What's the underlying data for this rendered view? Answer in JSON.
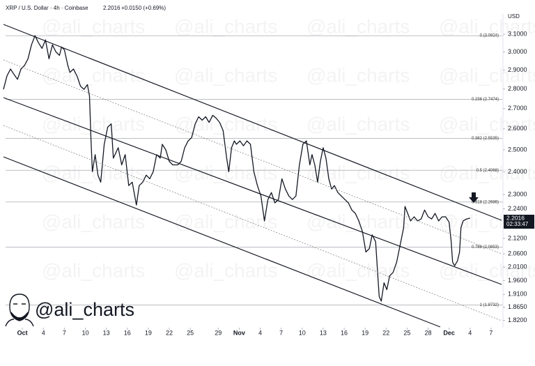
{
  "chart_data": {
    "type": "line",
    "header": {
      "symbol": "XRP / U.S. Dollar · 4h · Coinbase",
      "change": "+0.0150 (+0.69%)"
    },
    "currency": "USD",
    "last_price": 2.2016,
    "countdown": "02:33:47",
    "watermark": "@ali_charts",
    "color": "#131722",
    "y_scale": "log",
    "xlim": [
      -3.2,
      68.7
    ],
    "ylim": [
      1.8,
      3.22
    ],
    "xticks": [
      {
        "value": 0,
        "label": "Oct"
      },
      {
        "value": 3,
        "label": "4"
      },
      {
        "value": 6,
        "label": "7"
      },
      {
        "value": 9,
        "label": "10"
      },
      {
        "value": 12,
        "label": "13"
      },
      {
        "value": 15,
        "label": "16"
      },
      {
        "value": 18,
        "label": "19"
      },
      {
        "value": 21,
        "label": "22"
      },
      {
        "value": 24,
        "label": "25"
      },
      {
        "value": 28,
        "label": "29"
      },
      {
        "value": 31,
        "label": "Nov"
      },
      {
        "value": 34,
        "label": "4"
      },
      {
        "value": 37,
        "label": "7"
      },
      {
        "value": 40,
        "label": "10"
      },
      {
        "value": 43,
        "label": "13"
      },
      {
        "value": 46,
        "label": "16"
      },
      {
        "value": 49,
        "label": "19"
      },
      {
        "value": 52,
        "label": "22"
      },
      {
        "value": 55,
        "label": "25"
      },
      {
        "value": 58,
        "label": "28"
      },
      {
        "value": 61,
        "label": "Dec"
      },
      {
        "value": 64,
        "label": "4"
      },
      {
        "value": 67,
        "label": "7"
      }
    ],
    "yticks": [
      {
        "value": 3.1,
        "label": "3.1000"
      },
      {
        "value": 3.0,
        "label": "3.0000"
      },
      {
        "value": 2.9,
        "label": "2.9000"
      },
      {
        "value": 2.8,
        "label": "2.8000"
      },
      {
        "value": 2.7,
        "label": "2.7000"
      },
      {
        "value": 2.6,
        "label": "2.6000"
      },
      {
        "value": 2.5,
        "label": "2.5000"
      },
      {
        "value": 2.4,
        "label": "2.4000"
      },
      {
        "value": 2.3,
        "label": "2.3000"
      },
      {
        "value": 2.24,
        "label": "2.2400"
      },
      {
        "value": 2.12,
        "label": "2.1200"
      },
      {
        "value": 2.06,
        "label": "2.0600"
      },
      {
        "value": 2.01,
        "label": "2.0100"
      },
      {
        "value": 1.96,
        "label": "1.9600"
      },
      {
        "value": 1.91,
        "label": "1.9100"
      },
      {
        "value": 1.865,
        "label": "1.8650"
      },
      {
        "value": 1.82,
        "label": "1.8200"
      }
    ],
    "fib_levels": [
      {
        "value": 3.0924,
        "label": "0 (3.0924)"
      },
      {
        "value": 2.7474,
        "label": "0.236 (2.7474)"
      },
      {
        "value": 2.5535,
        "label": "0.382 (2.5535)"
      },
      {
        "value": 2.4068,
        "label": "0.5 (2.4068)"
      },
      {
        "value": 2.2686,
        "label": "0.618 (2.2686)"
      },
      {
        "value": 2.0853,
        "label": "0.786 (2.0853)"
      },
      {
        "value": 1.8732,
        "label": "1 (1.8732)"
      }
    ],
    "x": [
      -2.7,
      -2.2,
      -1.7,
      -1.2,
      -0.7,
      -0.2,
      0.3,
      0.8,
      1.3,
      1.8,
      2.3,
      2.8,
      3.3,
      3.8,
      4.3,
      4.8,
      5.3,
      5.6,
      6.0,
      6.5,
      6.8,
      7.3,
      7.8,
      8.3,
      8.8,
      9.3,
      9.6,
      9.8,
      10.0,
      10.4,
      10.8,
      11.2,
      11.7,
      12.2,
      12.7,
      13.0,
      13.7,
      14.2,
      14.7,
      15.2,
      15.7,
      16.3,
      16.7,
      17.2,
      17.7,
      18.2,
      18.7,
      19.2,
      19.7,
      20.0,
      20.5,
      21.0,
      21.5,
      22.2,
      22.7,
      23.2,
      23.7,
      24.2,
      24.7,
      25.2,
      25.7,
      26.2,
      26.7,
      27.2,
      27.7,
      28.2,
      28.7,
      29.2,
      29.5,
      29.9,
      30.3,
      30.6,
      31.1,
      31.6,
      32.1,
      32.6,
      33.1,
      33.6,
      34.1,
      34.6,
      35.1,
      35.6,
      36.1,
      36.6,
      37.1,
      37.6,
      38.1,
      38.6,
      39.1,
      39.6,
      40.1,
      40.6,
      41.1,
      41.4,
      41.8,
      42.2,
      42.6,
      43.0,
      43.4,
      43.8,
      44.2,
      44.6,
      45.1,
      45.6,
      46.1,
      46.6,
      47.1,
      47.6,
      48.1,
      48.6,
      49.1,
      49.6,
      50.0,
      50.5,
      51.0,
      51.3,
      51.7,
      52.1,
      52.5,
      53.0,
      53.5,
      54.0,
      54.5,
      54.7,
      55.0,
      55.5,
      56.0,
      56.5,
      57.0,
      57.5,
      58.0,
      58.5,
      59.0,
      59.5,
      60.0,
      60.5,
      61.0,
      61.3,
      61.5,
      61.8,
      62.2,
      62.5,
      62.7,
      63.0,
      63.5,
      64.0
    ],
    "values": [
      2.798,
      2.869,
      2.906,
      2.877,
      2.851,
      2.906,
      2.925,
      2.962,
      3.04,
      3.092,
      3.052,
      3.02,
      3.068,
      2.962,
      3.04,
      3.0,
      2.981,
      3.028,
      3.012,
      2.925,
      2.888,
      2.906,
      2.869,
      2.815,
      2.798,
      2.823,
      2.762,
      2.558,
      2.4,
      2.478,
      2.385,
      2.354,
      2.526,
      2.608,
      2.624,
      2.462,
      2.51,
      2.431,
      2.478,
      2.339,
      2.354,
      2.256,
      2.339,
      2.354,
      2.385,
      2.369,
      2.4,
      2.478,
      2.462,
      2.526,
      2.5,
      2.447,
      2.431,
      2.431,
      2.447,
      2.51,
      2.542,
      2.558,
      2.624,
      2.659,
      2.642,
      2.659,
      2.631,
      2.666,
      2.652,
      2.631,
      2.591,
      2.462,
      2.4,
      2.51,
      2.542,
      2.526,
      2.542,
      2.519,
      2.542,
      2.526,
      2.4,
      2.339,
      2.294,
      2.19,
      2.279,
      2.309,
      2.265,
      2.279,
      2.369,
      2.324,
      2.294,
      2.279,
      2.294,
      2.431,
      2.526,
      2.542,
      2.431,
      2.478,
      2.431,
      2.354,
      2.447,
      2.51,
      2.462,
      2.369,
      2.324,
      2.339,
      2.309,
      2.294,
      2.279,
      2.265,
      2.235,
      2.221,
      2.19,
      2.148,
      2.067,
      2.08,
      2.134,
      2.107,
      1.903,
      1.886,
      1.952,
      1.927,
      1.977,
      1.99,
      2.028,
      2.094,
      2.162,
      2.25,
      2.227,
      2.19,
      2.207,
      2.19,
      2.198,
      2.235,
      2.207,
      2.198,
      2.221,
      2.19,
      2.207,
      2.207,
      2.185,
      2.107,
      2.028,
      2.015,
      2.033,
      2.067,
      2.162,
      2.19,
      2.198,
      2.2016
    ]
  }
}
